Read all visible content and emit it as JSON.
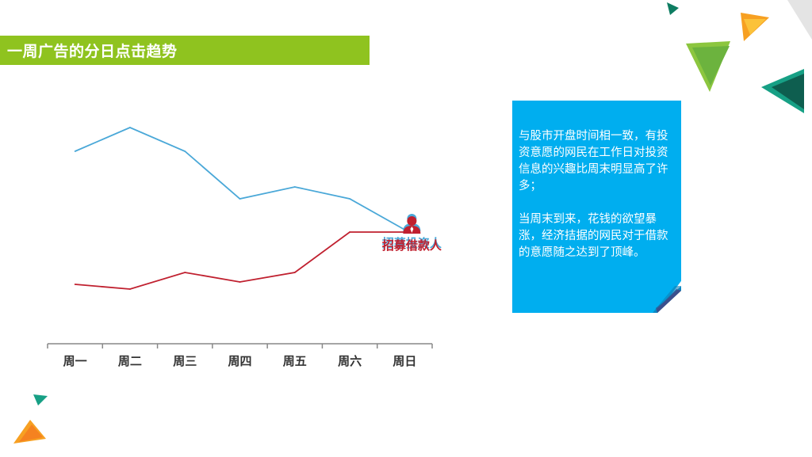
{
  "slide": {
    "title": "一周广告的分日点击趋势",
    "note_paragraph_1": "与股市开盘时间相一致，有投资意愿的网民在工作日对投资信息的兴趣比周末明显高了许多；",
    "note_paragraph_2": "当周末到来，花钱的欲望暴涨，经济拮据的网民对于借款的意愿随之达到了顶峰。"
  },
  "colors": {
    "title_bar": "#8fc31f",
    "note_bg": "#00aeef",
    "investor_line": "#4aa8d8",
    "borrower_line": "#c0202f",
    "axis": "#888888"
  },
  "icons": [
    "person-icon-blue",
    "person-icon-red"
  ],
  "chart_data": {
    "type": "line",
    "categories": [
      "周一",
      "周二",
      "周三",
      "周四",
      "周五",
      "周六",
      "周日"
    ],
    "series": [
      {
        "name": "招募投资人",
        "values": [
          78,
          88,
          78,
          58,
          63,
          58,
          45
        ]
      },
      {
        "name": "招募借款人",
        "values": [
          22,
          20,
          27,
          23,
          27,
          44,
          44
        ]
      }
    ],
    "ylim": [
      0,
      100
    ],
    "grid": false,
    "legend": "inline-labels-at-line-ends"
  }
}
